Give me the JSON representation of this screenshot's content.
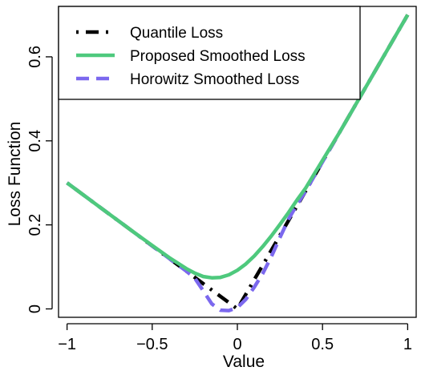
{
  "chart_data": {
    "type": "line",
    "xlabel": "Value",
    "ylabel": "Loss Function",
    "xlim": [
      -1.05,
      1.05
    ],
    "ylim": [
      -0.02,
      0.72
    ],
    "x_ticks": [
      -1,
      -0.5,
      0,
      0.5,
      1
    ],
    "x_tick_labels": [
      "−1",
      "−0.5",
      "0",
      "0.5",
      "1"
    ],
    "y_ticks": [
      0,
      0.2,
      0.4,
      0.6
    ],
    "y_tick_labels": [
      "0",
      "0.2",
      "0.4",
      "0.6"
    ],
    "grid": false,
    "legend_position": "top-left",
    "series": [
      {
        "name": "Quantile Loss",
        "color": "#000000",
        "style": "dotdash",
        "x": [
          -1.0,
          -0.8,
          -0.6,
          -0.4,
          -0.3,
          -0.25,
          -0.2,
          -0.15,
          -0.1,
          -0.05,
          0.0,
          0.05,
          0.1,
          0.15,
          0.2,
          0.25,
          0.3,
          0.4,
          0.6,
          0.8,
          1.0
        ],
        "y": [
          0.3,
          0.24,
          0.18,
          0.12,
          0.09,
          0.075,
          0.06,
          0.045,
          0.03,
          0.015,
          0.0,
          0.035,
          0.07,
          0.105,
          0.14,
          0.175,
          0.21,
          0.28,
          0.42,
          0.56,
          0.7
        ]
      },
      {
        "name": "Proposed Smoothed Loss",
        "color": "#4ec97d",
        "style": "solid",
        "x": [
          -1.0,
          -0.8,
          -0.6,
          -0.5,
          -0.4,
          -0.3,
          -0.25,
          -0.2,
          -0.15,
          -0.1,
          -0.05,
          0.0,
          0.05,
          0.1,
          0.15,
          0.2,
          0.25,
          0.3,
          0.35,
          0.4,
          0.6,
          0.8,
          1.0
        ],
        "y": [
          0.3,
          0.24,
          0.18,
          0.151,
          0.122,
          0.096,
          0.085,
          0.077,
          0.074,
          0.075,
          0.081,
          0.092,
          0.107,
          0.126,
          0.149,
          0.174,
          0.201,
          0.229,
          0.259,
          0.287,
          0.42,
          0.56,
          0.7
        ]
      },
      {
        "name": "Horowitz Smoothed Loss",
        "color": "#7b68ee",
        "style": "dashed",
        "x": [
          -1.0,
          -0.8,
          -0.6,
          -0.4,
          -0.35,
          -0.3,
          -0.25,
          -0.2,
          -0.15,
          -0.1,
          -0.05,
          0.0,
          0.05,
          0.1,
          0.15,
          0.2,
          0.25,
          0.3,
          0.35,
          0.4,
          0.6,
          0.8,
          1.0
        ],
        "y": [
          0.3,
          0.24,
          0.18,
          0.12,
          0.105,
          0.09,
          0.073,
          0.043,
          0.012,
          -0.003,
          -0.004,
          0.003,
          0.023,
          0.052,
          0.085,
          0.125,
          0.17,
          0.213,
          0.248,
          0.28,
          0.42,
          0.56,
          0.7
        ]
      }
    ]
  }
}
